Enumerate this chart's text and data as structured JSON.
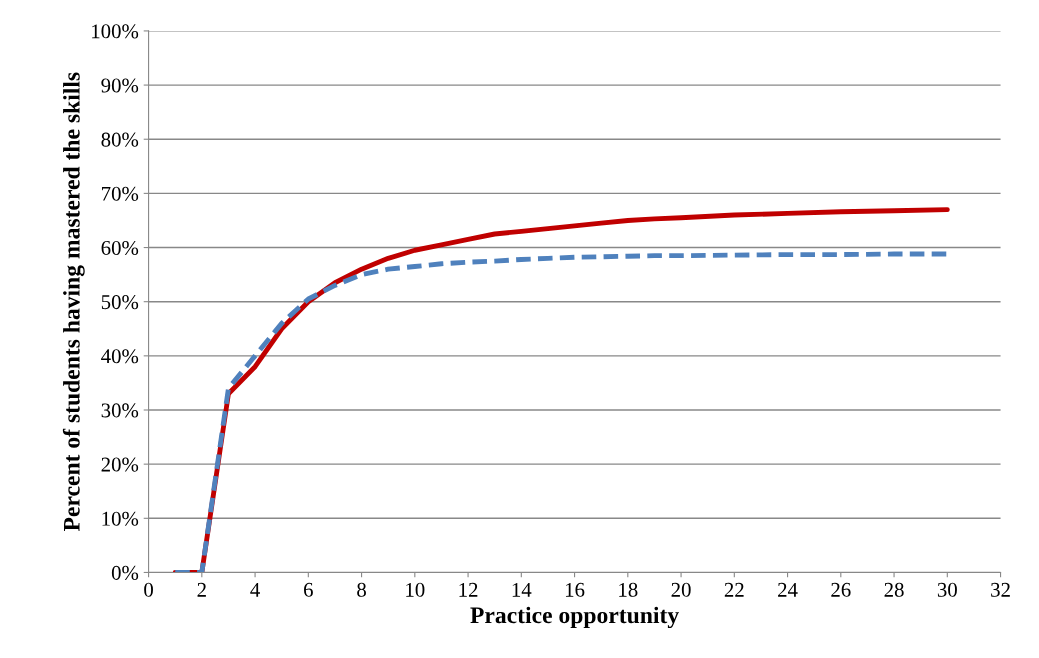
{
  "chart_data": {
    "type": "line",
    "xlabel": "Practice opportunity",
    "ylabel": "Percent of students having mastered the skills",
    "x": [
      1,
      2,
      3,
      4,
      5,
      6,
      7,
      8,
      9,
      10,
      11,
      12,
      13,
      14,
      15,
      16,
      17,
      18,
      19,
      20,
      22,
      24,
      26,
      28,
      30
    ],
    "series": [
      {
        "color": "#c00000",
        "line_style": "solid",
        "values": [
          0,
          0,
          33,
          38,
          45,
          50,
          53.5,
          56,
          58,
          59.5,
          60.5,
          61.5,
          62.5,
          63,
          63.5,
          64,
          64.5,
          65,
          65.3,
          65.5,
          66,
          66.3,
          66.6,
          66.8,
          67
        ]
      },
      {
        "color": "#4f81bd",
        "line_style": "dashed",
        "values": [
          0,
          0,
          34,
          40,
          46,
          50.5,
          53,
          55,
          56,
          56.5,
          57,
          57.3,
          57.5,
          57.8,
          58,
          58.2,
          58.3,
          58.4,
          58.5,
          58.5,
          58.6,
          58.7,
          58.7,
          58.8,
          58.8
        ]
      }
    ],
    "xlim": [
      0,
      32
    ],
    "xticks": [
      0,
      2,
      4,
      6,
      8,
      10,
      12,
      14,
      16,
      18,
      20,
      22,
      24,
      26,
      28,
      30,
      32
    ],
    "ylim": [
      0,
      100
    ],
    "yticks": [
      {
        "value": 0,
        "label": "0%"
      },
      {
        "value": 10,
        "label": "10%"
      },
      {
        "value": 20,
        "label": "20%"
      },
      {
        "value": 30,
        "label": "30%"
      },
      {
        "value": 40,
        "label": "40%"
      },
      {
        "value": 50,
        "label": "50%"
      },
      {
        "value": 60,
        "label": "60%"
      },
      {
        "value": 70,
        "label": "70%"
      },
      {
        "value": 80,
        "label": "80%"
      },
      {
        "value": 90,
        "label": "90%"
      },
      {
        "value": 100,
        "label": "100%"
      }
    ],
    "grid": "y",
    "marker": "none"
  }
}
